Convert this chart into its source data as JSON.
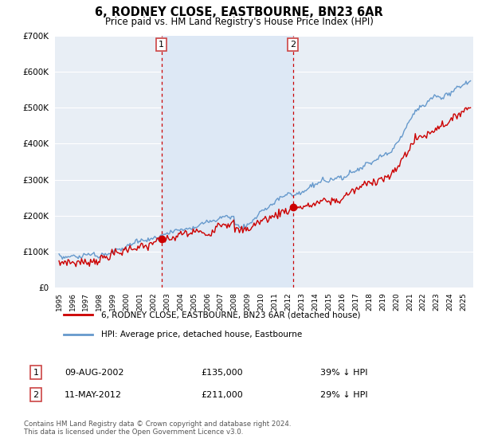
{
  "title": "6, RODNEY CLOSE, EASTBOURNE, BN23 6AR",
  "subtitle": "Price paid vs. HM Land Registry's House Price Index (HPI)",
  "legend_label_red": "6, RODNEY CLOSE, EASTBOURNE, BN23 6AR (detached house)",
  "legend_label_blue": "HPI: Average price, detached house, Eastbourne",
  "footer": "Contains HM Land Registry data © Crown copyright and database right 2024.\nThis data is licensed under the Open Government Licence v3.0.",
  "sale1_date": "09-AUG-2002",
  "sale1_price": 135000,
  "sale1_hpi_pct": "39% ↓ HPI",
  "sale2_date": "11-MAY-2012",
  "sale2_price": 211000,
  "sale2_hpi_pct": "29% ↓ HPI",
  "yticks": [
    0,
    100000,
    200000,
    300000,
    400000,
    500000,
    600000,
    700000
  ],
  "color_red": "#cc0000",
  "color_blue": "#6699cc",
  "color_shade": "#dde8f5",
  "background_plot": "#e8eef5",
  "background_fig": "#ffffff",
  "grid_color": "#ffffff",
  "sale1_x": 2002.583,
  "sale2_x": 2012.333,
  "xmin": 1994.7,
  "xmax": 2025.7,
  "ymin": 0,
  "ymax": 700000
}
